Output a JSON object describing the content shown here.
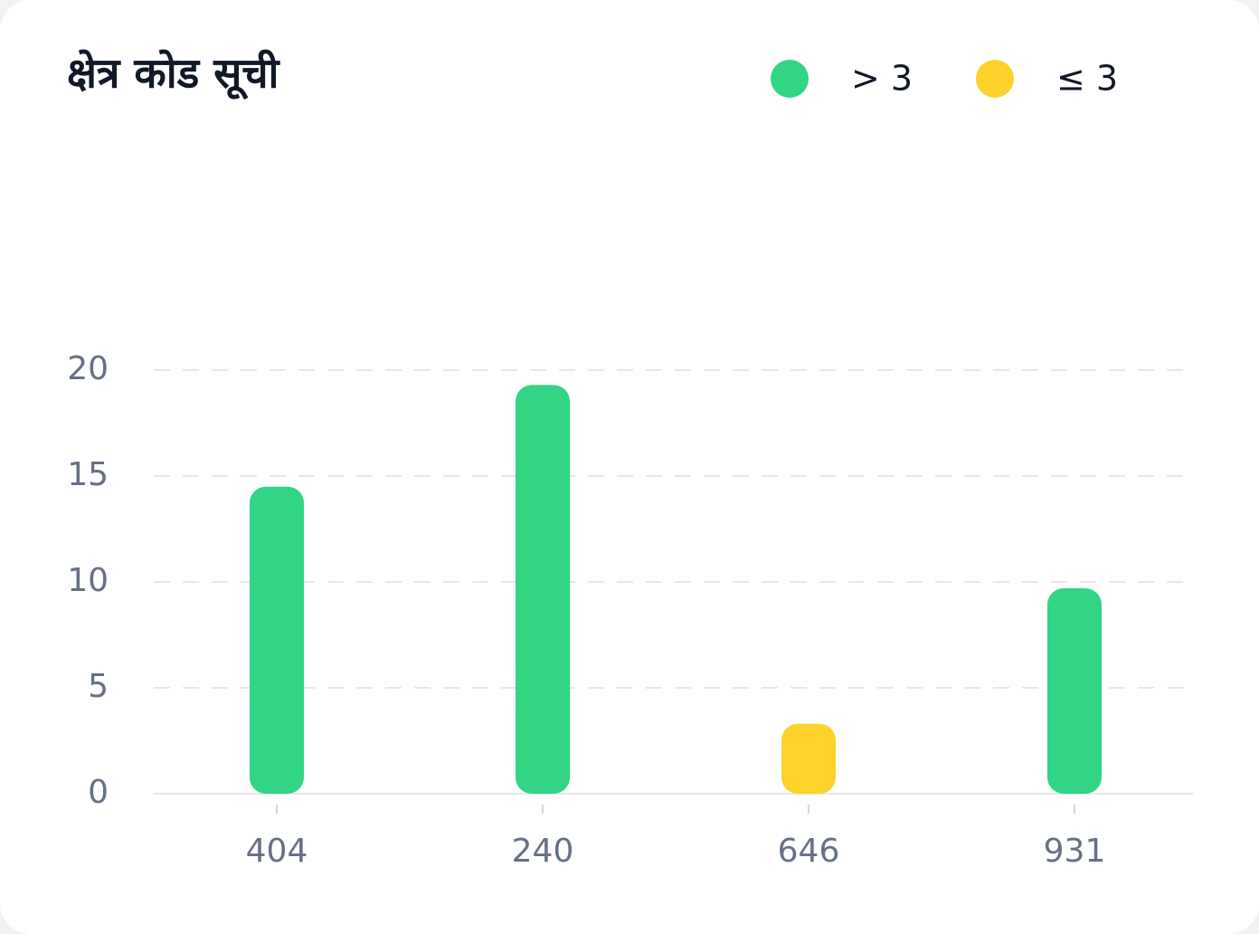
{
  "chart_data": {
    "type": "bar",
    "title": "क्षेत्र कोड सूची",
    "categories": [
      "404",
      "240",
      "646",
      "931"
    ],
    "series": [
      {
        "name": "> 3",
        "color": "#32d583",
        "values": [
          14.5,
          19.3,
          null,
          9.7
        ]
      },
      {
        "name": "≤ 3",
        "color": "#fdd22a",
        "values": [
          null,
          null,
          3.3,
          null
        ]
      }
    ],
    "ylim": [
      0,
      20
    ],
    "yticks": [
      0,
      5,
      10,
      15,
      20
    ],
    "grid": true,
    "legend": "top-right"
  }
}
